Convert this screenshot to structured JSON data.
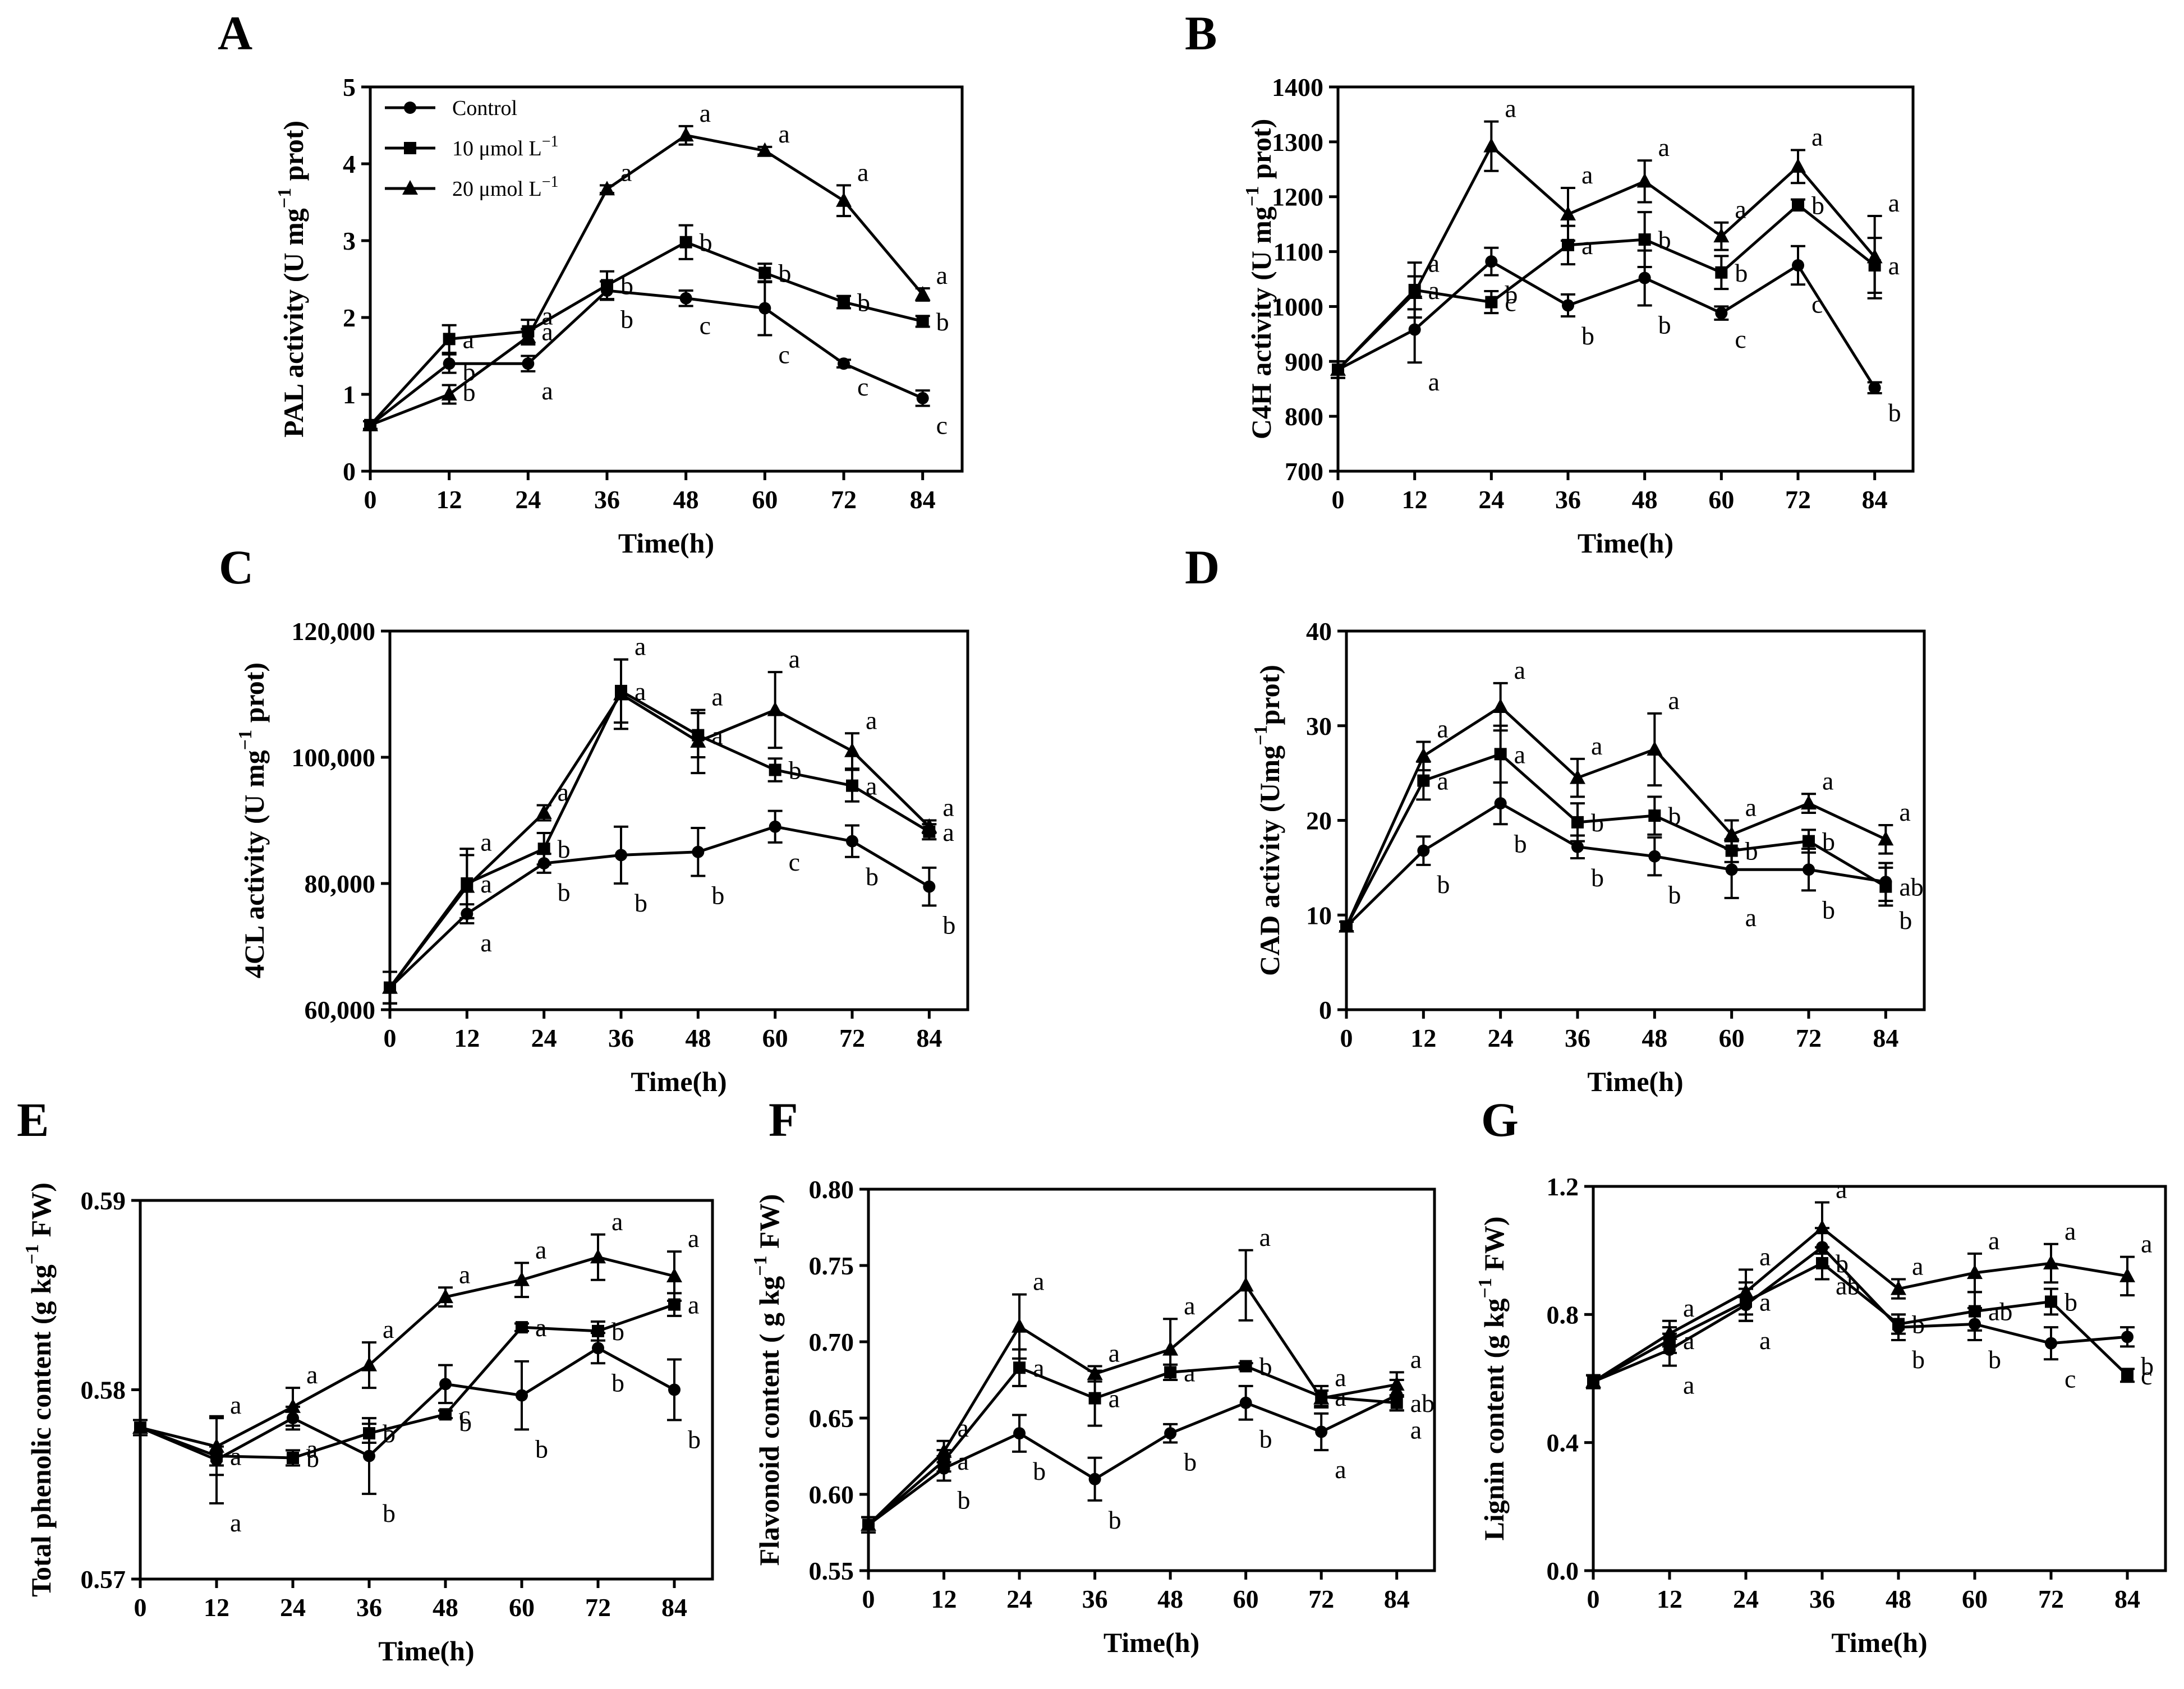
{
  "figure": {
    "legend": {
      "entries": [
        {
          "series": "control",
          "label_main": "Control",
          "label_sup": ""
        },
        {
          "series": "low",
          "label_main": "10 μmol L",
          "label_sup": "−1"
        },
        {
          "series": "high",
          "label_main": "20 μmol L",
          "label_sup": "−1"
        }
      ]
    }
  },
  "chart_data": [
    {
      "panel": "A",
      "type": "line",
      "ylabel": "PAL activity (U mg",
      "ylabel_sup": "−1",
      "ylabel_tail": " prot)",
      "xlabel": "Time(h)",
      "x": [
        0,
        12,
        24,
        36,
        48,
        60,
        72,
        84
      ],
      "x_tick_labels": [
        "0",
        "12",
        "24",
        "36",
        "48",
        "60",
        "72",
        "84"
      ],
      "xlim": [
        0,
        90
      ],
      "ylim": [
        0,
        5
      ],
      "y_ticks": [
        0,
        1,
        2,
        3,
        4,
        5
      ],
      "y_tick_labels": [
        "0",
        "1",
        "2",
        "3",
        "4",
        "5"
      ],
      "series": [
        {
          "name": "Control",
          "marker": "circle",
          "values": [
            0.6,
            1.4,
            1.4,
            2.35,
            2.25,
            2.12,
            1.4,
            0.95
          ],
          "errors": [
            0.05,
            0.12,
            0.1,
            0.12,
            0.1,
            0.35,
            0.05,
            0.1
          ],
          "labels": [
            "",
            "b",
            "a",
            "b",
            "c",
            "c",
            "c",
            "c"
          ]
        },
        {
          "name": "10 μmol L−1",
          "marker": "square",
          "values": [
            0.6,
            1.72,
            1.82,
            2.42,
            2.98,
            2.58,
            2.2,
            1.95
          ],
          "errors": [
            0.05,
            0.18,
            0.15,
            0.18,
            0.22,
            0.12,
            0.08,
            0.07
          ],
          "labels": [
            "",
            "a",
            "a",
            "b",
            "b",
            "b",
            "b",
            "b"
          ]
        },
        {
          "name": "20 μmol L−1",
          "marker": "triangle",
          "values": [
            0.6,
            1.0,
            1.75,
            3.67,
            4.37,
            4.17,
            3.52,
            2.3
          ],
          "errors": [
            0.05,
            0.12,
            0.1,
            0.05,
            0.12,
            0.05,
            0.2,
            0.08
          ],
          "labels": [
            "",
            "b",
            "a",
            "a",
            "a",
            "a",
            "a",
            "a"
          ]
        }
      ]
    },
    {
      "panel": "B",
      "type": "line",
      "ylabel": "C4H activity (U mg",
      "ylabel_sup": "−1",
      "ylabel_tail": " prot)",
      "xlabel": "Time(h)",
      "x": [
        0,
        12,
        24,
        36,
        48,
        60,
        72,
        84
      ],
      "x_tick_labels": [
        "0",
        "12",
        "24",
        "36",
        "48",
        "60",
        "72",
        "84"
      ],
      "xlim": [
        0,
        90
      ],
      "ylim": [
        700,
        1400
      ],
      "y_ticks": [
        700,
        800,
        900,
        1000,
        1100,
        1200,
        1300,
        1400
      ],
      "y_tick_labels": [
        "700",
        "800",
        "900",
        "1000",
        "1100",
        "1200",
        "1300",
        "1400"
      ],
      "series": [
        {
          "name": "Control",
          "marker": "circle",
          "values": [
            885,
            958,
            1082,
            1002,
            1052,
            988,
            1075,
            852
          ],
          "errors": [
            15,
            60,
            25,
            20,
            50,
            12,
            35,
            10
          ],
          "labels": [
            "",
            "a",
            "b",
            "b",
            "b",
            "c",
            "c",
            "b"
          ]
        },
        {
          "name": "10 μmol L−1",
          "marker": "square",
          "values": [
            885,
            1030,
            1008,
            1112,
            1122,
            1062,
            1185,
            1075
          ],
          "errors": [
            15,
            50,
            20,
            35,
            50,
            30,
            10,
            50
          ],
          "labels": [
            "",
            "a",
            "c",
            "a",
            "b",
            "b",
            "b",
            "a"
          ]
        },
        {
          "name": "20 μmol L−1",
          "marker": "triangle",
          "values": [
            885,
            1025,
            1292,
            1168,
            1228,
            1128,
            1255,
            1090
          ],
          "errors": [
            15,
            30,
            45,
            48,
            38,
            25,
            30,
            75
          ],
          "labels": [
            "",
            "a",
            "a",
            "a",
            "a",
            "a",
            "a",
            "a"
          ]
        }
      ]
    },
    {
      "panel": "C",
      "type": "line",
      "ylabel": "4CL activity (U mg",
      "ylabel_sup": "−1",
      "ylabel_tail": " prot)",
      "xlabel": "Time(h)",
      "x": [
        0,
        12,
        24,
        36,
        48,
        60,
        72,
        84
      ],
      "x_tick_labels": [
        "0",
        "12",
        "24",
        "36",
        "48",
        "60",
        "72",
        "84"
      ],
      "xlim": [
        0,
        90
      ],
      "ylim": [
        60000,
        120000
      ],
      "y_ticks": [
        60000,
        80000,
        100000,
        120000
      ],
      "y_tick_labels": [
        "60,000",
        "80,000",
        "100,000",
        "120,000"
      ],
      "series": [
        {
          "name": "Control",
          "marker": "circle",
          "values": [
            63500,
            75200,
            83200,
            84500,
            85000,
            89000,
            86700,
            79500
          ],
          "errors": [
            2500,
            1500,
            1500,
            4500,
            3800,
            2500,
            2500,
            3000
          ],
          "labels": [
            "",
            "a",
            "b",
            "b",
            "b",
            "c",
            "b",
            "b"
          ]
        },
        {
          "name": "10 μmol L−1",
          "marker": "square",
          "values": [
            63500,
            80000,
            85500,
            110500,
            103500,
            98000,
            95500,
            88200
          ],
          "errors": [
            2500,
            5500,
            2500,
            5000,
            3500,
            1800,
            2500,
            1200
          ],
          "labels": [
            "",
            "a",
            "b",
            "a",
            "a",
            "b",
            "a",
            "a"
          ]
        },
        {
          "name": "20 μmol L−1",
          "marker": "triangle",
          "values": [
            63500,
            79500,
            91200,
            110000,
            102500,
            107500,
            101000,
            89000
          ],
          "errors": [
            2500,
            5000,
            1200,
            5500,
            5000,
            6000,
            2800,
            1000
          ],
          "labels": [
            "",
            "a",
            "a",
            "a",
            "a",
            "a",
            "a",
            "a"
          ]
        }
      ]
    },
    {
      "panel": "D",
      "type": "line",
      "ylabel": "CAD activity (Umg",
      "ylabel_sup": "−1",
      "ylabel_tail": "prot)",
      "xlabel": "Time(h)",
      "x": [
        0,
        12,
        24,
        36,
        48,
        60,
        72,
        84
      ],
      "x_tick_labels": [
        "0",
        "12",
        "24",
        "36",
        "48",
        "60",
        "72",
        "84"
      ],
      "xlim": [
        0,
        90
      ],
      "ylim": [
        0,
        40
      ],
      "y_ticks": [
        0,
        10,
        20,
        30,
        40
      ],
      "y_tick_labels": [
        "0",
        "10",
        "20",
        "30",
        "40"
      ],
      "series": [
        {
          "name": "Control",
          "marker": "circle",
          "values": [
            8.8,
            16.8,
            21.8,
            17.2,
            16.2,
            14.8,
            14.8,
            13.5
          ],
          "errors": [
            0.5,
            1.5,
            2.2,
            1.2,
            2.0,
            3.0,
            2.2,
            2.0
          ],
          "labels": [
            "",
            "b",
            "b",
            "b",
            "b",
            "a",
            "b",
            "b"
          ]
        },
        {
          "name": "10 μmol L−1",
          "marker": "square",
          "values": [
            8.8,
            24.2,
            27.0,
            19.8,
            20.5,
            16.8,
            17.8,
            13.0
          ],
          "errors": [
            0.5,
            2.0,
            3.0,
            2.0,
            2.0,
            1.2,
            1.2,
            2.0
          ],
          "labels": [
            "",
            "a",
            "a",
            "b",
            "b",
            "b",
            "b",
            "ab"
          ]
        },
        {
          "name": "20 μmol L−1",
          "marker": "triangle",
          "values": [
            8.8,
            26.8,
            32.0,
            24.5,
            27.5,
            18.5,
            21.8,
            18.0
          ],
          "errors": [
            0.5,
            1.5,
            2.5,
            2.0,
            3.8,
            1.5,
            1.0,
            1.5
          ],
          "labels": [
            "",
            "a",
            "a",
            "a",
            "a",
            "a",
            "a",
            "a"
          ]
        }
      ]
    },
    {
      "panel": "E",
      "type": "line",
      "ylabel": "Total phenolic content (g kg",
      "ylabel_sup": "−1",
      "ylabel_tail": " FW)",
      "xlabel": "Time(h)",
      "x": [
        0,
        12,
        24,
        36,
        48,
        60,
        72,
        84
      ],
      "x_tick_labels": [
        "0",
        "12",
        "24",
        "36",
        "48",
        "60",
        "72",
        "84"
      ],
      "xlim": [
        0,
        90
      ],
      "ylim": [
        0.57,
        0.59
      ],
      "y_ticks": [
        0.57,
        0.58,
        0.59
      ],
      "y_tick_labels": [
        "0.57",
        "0.58",
        "0.59"
      ],
      "series": [
        {
          "name": "Control",
          "marker": "circle",
          "values": [
            0.578,
            0.5763,
            0.5785,
            0.5765,
            0.5803,
            0.5797,
            0.5822,
            0.58
          ],
          "errors": [
            0.0004,
            0.0023,
            0.0006,
            0.002,
            0.001,
            0.0018,
            0.0008,
            0.0016
          ],
          "labels": [
            "",
            "a",
            "a",
            "b",
            "b",
            "b",
            "b",
            "b"
          ]
        },
        {
          "name": "10 μmol L−1",
          "marker": "square",
          "values": [
            0.578,
            0.5765,
            0.5764,
            0.5777,
            0.5787,
            0.5833,
            0.5831,
            0.5845
          ],
          "errors": [
            0.0004,
            0.0005,
            0.0004,
            0.0005,
            0.0002,
            0.0002,
            0.0005,
            0.0006
          ],
          "labels": [
            "",
            "a",
            "b",
            "b",
            "c",
            "a",
            "b",
            "a"
          ]
        },
        {
          "name": "20 μmol L−1",
          "marker": "triangle",
          "values": [
            0.578,
            0.577,
            0.5791,
            0.5813,
            0.5849,
            0.5858,
            0.587,
            0.586
          ],
          "errors": [
            0.0004,
            0.0015,
            0.001,
            0.0012,
            0.0005,
            0.0009,
            0.0012,
            0.0013
          ],
          "labels": [
            "",
            "a",
            "a",
            "a",
            "a",
            "a",
            "a",
            "a"
          ]
        }
      ]
    },
    {
      "panel": "F",
      "type": "line",
      "ylabel": "Flavonoid content ( g kg",
      "ylabel_sup": "−1",
      "ylabel_tail": " FW)",
      "xlabel": "Time(h)",
      "x": [
        0,
        12,
        24,
        36,
        48,
        60,
        72,
        84
      ],
      "x_tick_labels": [
        "0",
        "12",
        "24",
        "36",
        "48",
        "60",
        "72",
        "84"
      ],
      "xlim": [
        0,
        90
      ],
      "ylim": [
        0.55,
        0.8
      ],
      "y_ticks": [
        0.55,
        0.6,
        0.65,
        0.7,
        0.75,
        0.8
      ],
      "y_tick_labels": [
        "0.55",
        "0.60",
        "0.65",
        "0.70",
        "0.75",
        "0.80"
      ],
      "series": [
        {
          "name": "Control",
          "marker": "circle",
          "values": [
            0.58,
            0.617,
            0.64,
            0.61,
            0.64,
            0.66,
            0.641,
            0.665
          ],
          "errors": [
            0.005,
            0.008,
            0.012,
            0.014,
            0.006,
            0.011,
            0.012,
            0.01
          ],
          "labels": [
            "",
            "b",
            "b",
            "b",
            "b",
            "b",
            "a",
            "a"
          ]
        },
        {
          "name": "10 μmol L−1",
          "marker": "square",
          "values": [
            0.58,
            0.622,
            0.683,
            0.663,
            0.68,
            0.684,
            0.664,
            0.66
          ],
          "errors": [
            0.005,
            0.007,
            0.012,
            0.018,
            0.005,
            0.002,
            0.007,
            0.005
          ],
          "labels": [
            "",
            "a",
            "a",
            "a",
            "a",
            "b",
            "a",
            "ab"
          ]
        },
        {
          "name": "20 μmol L−1",
          "marker": "triangle",
          "values": [
            0.58,
            0.628,
            0.71,
            0.679,
            0.695,
            0.737,
            0.663,
            0.672
          ],
          "errors": [
            0.005,
            0.007,
            0.021,
            0.005,
            0.02,
            0.023,
            0.005,
            0.008
          ],
          "labels": [
            "",
            "a",
            "a",
            "a",
            "a",
            "a",
            "a",
            "a"
          ]
        }
      ]
    },
    {
      "panel": "G",
      "type": "line",
      "ylabel": "Lignin content (g kg",
      "ylabel_sup": "−1",
      "ylabel_tail": " FW)",
      "xlabel": "Time(h)",
      "x": [
        0,
        12,
        24,
        36,
        48,
        60,
        72,
        84
      ],
      "x_tick_labels": [
        "0",
        "12",
        "24",
        "36",
        "48",
        "60",
        "72",
        "84"
      ],
      "xlim": [
        0,
        90
      ],
      "ylim": [
        0,
        1.2
      ],
      "y_ticks": [
        0,
        0.4,
        0.8,
        1.2
      ],
      "y_tick_labels": [
        "0.0",
        "0.4",
        "0.8",
        "1.2"
      ],
      "series": [
        {
          "name": "Control",
          "marker": "circle",
          "values": [
            0.59,
            0.69,
            0.83,
            1.01,
            0.76,
            0.77,
            0.71,
            0.73
          ],
          "errors": [
            0.02,
            0.05,
            0.05,
            0.06,
            0.04,
            0.05,
            0.05,
            0.03
          ],
          "labels": [
            "",
            "a",
            "a",
            "ab",
            "b",
            "b",
            "c",
            "b"
          ]
        },
        {
          "name": "10 μmol L−1",
          "marker": "square",
          "values": [
            0.59,
            0.72,
            0.84,
            0.96,
            0.77,
            0.81,
            0.84,
            0.61
          ],
          "errors": [
            0.02,
            0.04,
            0.06,
            0.05,
            0.03,
            0.06,
            0.04,
            0.02
          ],
          "labels": [
            "",
            "a",
            "a",
            "b",
            "b",
            "ab",
            "b",
            "c"
          ]
        },
        {
          "name": "20 μmol L−1",
          "marker": "triangle",
          "values": [
            0.59,
            0.74,
            0.87,
            1.07,
            0.88,
            0.93,
            0.96,
            0.92
          ],
          "errors": [
            0.02,
            0.04,
            0.07,
            0.08,
            0.03,
            0.06,
            0.06,
            0.06
          ],
          "labels": [
            "",
            "a",
            "a",
            "a",
            "a",
            "a",
            "a",
            "a"
          ]
        }
      ]
    }
  ]
}
